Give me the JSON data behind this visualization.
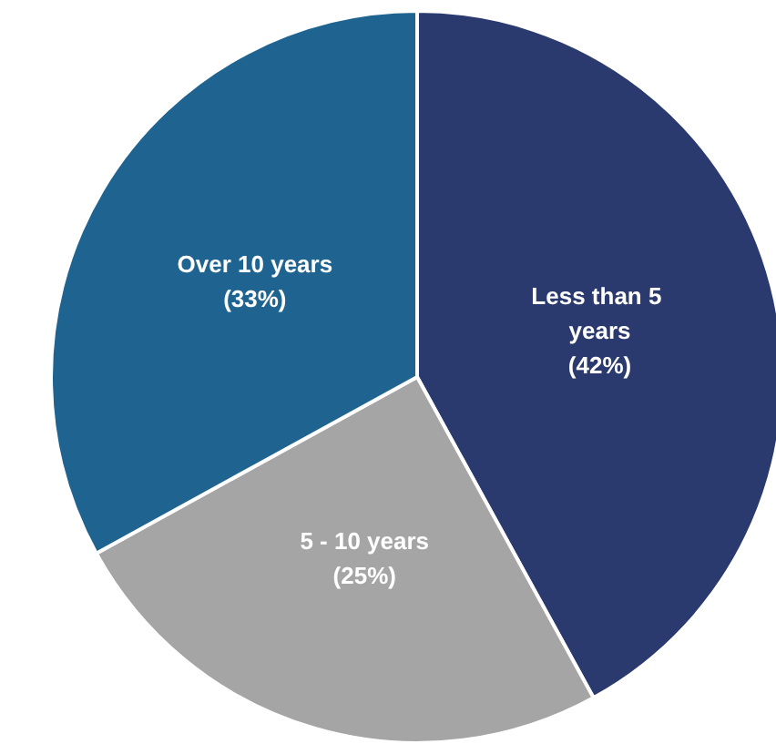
{
  "chart_data": {
    "type": "pie",
    "categories": [
      "Less than 5 years",
      "5 - 10 years",
      "Over 10 years"
    ],
    "values": [
      42,
      25,
      33
    ],
    "colors": [
      "#2b3a6e",
      "#a5a5a5",
      "#1f6491"
    ],
    "value_labels": [
      "(42%)",
      "(25%)",
      "(33%)"
    ]
  }
}
